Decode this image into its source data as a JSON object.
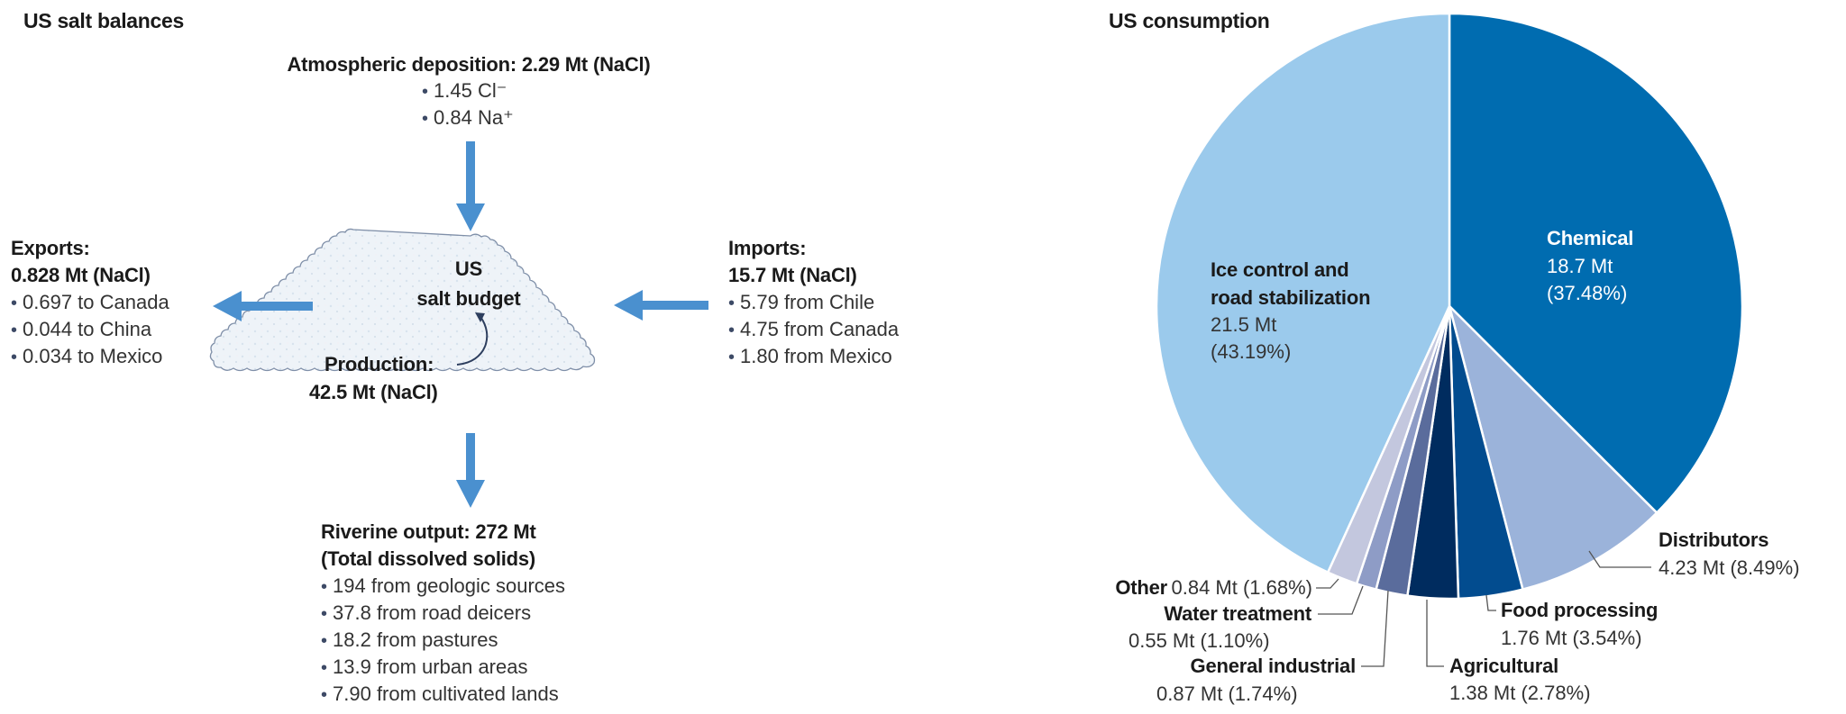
{
  "left_panel": {
    "title": "US salt balances",
    "atmospheric": {
      "title": "Atmospheric deposition: 2.29 Mt (NaCl)",
      "items": [
        "1.45 Cl⁻",
        "0.84 Na⁺"
      ]
    },
    "exports": {
      "title": "Exports:",
      "value": "0.828 Mt (NaCl)",
      "items": [
        "0.697 to Canada",
        "0.044 to China",
        "0.034 to Mexico"
      ]
    },
    "imports": {
      "title": "Imports:",
      "value": "15.7 Mt (NaCl)",
      "items": [
        "5.79 from Chile",
        "4.75 from Canada",
        "1.80 from Mexico"
      ]
    },
    "budget": {
      "line1": "US",
      "line2": "salt budget",
      "production_label": "Production:",
      "production_value": "42.5 Mt (NaCl)"
    },
    "riverine": {
      "title": "Riverine output: 272 Mt",
      "subtitle": "(Total dissolved solids)",
      "items": [
        "194 from geologic sources",
        "37.8 from road deicers",
        "18.2 from pastures",
        "13.9 from urban areas",
        "7.90 from cultivated lands"
      ]
    },
    "arrow_color": "#4A90CF"
  },
  "right_panel": {
    "title": "US consumption"
  },
  "chart_data": [
    {
      "type": "pie",
      "title": "US consumption",
      "unit": "Mt",
      "start_angle": "12 o'clock, clockwise",
      "slices": [
        {
          "name": "Chemical",
          "value": 18.7,
          "percent": 37.48,
          "color": "#006CB0",
          "label_value": "18.7 Mt",
          "label_percent": "(37.48%)"
        },
        {
          "name": "Distributors",
          "value": 4.23,
          "percent": 8.49,
          "color": "#9BB3DA",
          "label_value": "4.23 Mt (8.49%)"
        },
        {
          "name": "Food processing",
          "value": 1.76,
          "percent": 3.54,
          "color": "#024C8F",
          "label_value": "1.76 Mt (3.54%)"
        },
        {
          "name": "Agricultural",
          "value": 1.38,
          "percent": 2.78,
          "color": "#002C5F",
          "label_value": "1.38 Mt (2.78%)"
        },
        {
          "name": "General industrial",
          "value": 0.87,
          "percent": 1.74,
          "color": "#5A6C9C",
          "label_value": "0.87 Mt (1.74%)"
        },
        {
          "name": "Water treatment",
          "value": 0.55,
          "percent": 1.1,
          "color": "#8E9CC6",
          "label_value": "0.55 Mt (1.10%)"
        },
        {
          "name": "Other",
          "value": 0.84,
          "percent": 1.68,
          "color": "#C3C7DE",
          "label_value": "0.84 Mt (1.68%)"
        },
        {
          "name": "Ice control and road stabilization",
          "value": 21.5,
          "percent": 43.19,
          "color": "#9BCAEC",
          "label_line1": "Ice control and",
          "label_line2": "road stabilization",
          "label_value": "21.5 Mt",
          "label_percent": "(43.19%)"
        }
      ]
    },
    {
      "type": "table",
      "title": "US salt balances",
      "flows": [
        {
          "name": "Atmospheric deposition",
          "value": 2.29,
          "unit": "Mt (NaCl)",
          "direction": "in",
          "components": [
            {
              "name": "Cl-",
              "value": 1.45
            },
            {
              "name": "Na+",
              "value": 0.84
            }
          ]
        },
        {
          "name": "Imports",
          "value": 15.7,
          "unit": "Mt (NaCl)",
          "direction": "in",
          "components": [
            {
              "name": "Chile",
              "value": 5.79
            },
            {
              "name": "Canada",
              "value": 4.75
            },
            {
              "name": "Mexico",
              "value": 1.8
            }
          ]
        },
        {
          "name": "Production",
          "value": 42.5,
          "unit": "Mt (NaCl)",
          "direction": "internal"
        },
        {
          "name": "Exports",
          "value": 0.828,
          "unit": "Mt (NaCl)",
          "direction": "out",
          "components": [
            {
              "name": "Canada",
              "value": 0.697
            },
            {
              "name": "China",
              "value": 0.044
            },
            {
              "name": "Mexico",
              "value": 0.034
            }
          ]
        },
        {
          "name": "Riverine output",
          "value": 272,
          "unit": "Mt (Total dissolved solids)",
          "direction": "out",
          "components": [
            {
              "name": "geologic sources",
              "value": 194
            },
            {
              "name": "road deicers",
              "value": 37.8
            },
            {
              "name": "pastures",
              "value": 18.2
            },
            {
              "name": "urban areas",
              "value": 13.9
            },
            {
              "name": "cultivated lands",
              "value": 7.9
            }
          ]
        }
      ]
    }
  ]
}
